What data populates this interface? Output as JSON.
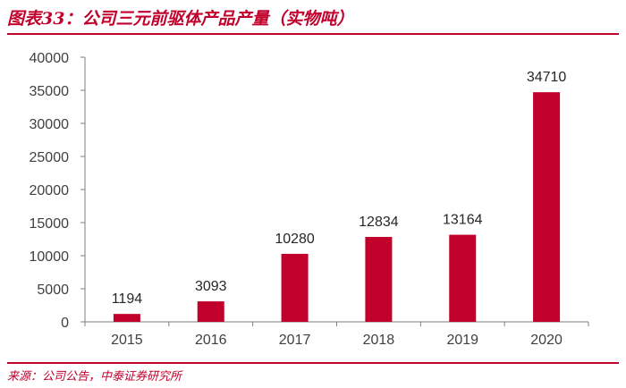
{
  "header": {
    "title": "图表33：公司三元前驱体产品产量（实物吨）"
  },
  "footer": {
    "source": "来源：公司公告，中泰证券研究所"
  },
  "colors": {
    "bar": "#c1002c",
    "accent": "#c1002c",
    "axis": "#7f7f7f",
    "text": "#404040"
  },
  "chart_data": {
    "type": "bar",
    "title": "",
    "xlabel": "",
    "ylabel": "",
    "categories": [
      "2015",
      "2016",
      "2017",
      "2018",
      "2019",
      "2020"
    ],
    "values": [
      1194,
      3093,
      10280,
      12834,
      13164,
      34710
    ],
    "data_labels": [
      "1194",
      "3093",
      "10280",
      "12834",
      "13164",
      "34710"
    ],
    "ylim": [
      0,
      40000
    ],
    "yticks": [
      "0",
      "5000",
      "10000",
      "15000",
      "20000",
      "25000",
      "30000",
      "35000",
      "40000"
    ],
    "grid": false,
    "legend": "none"
  }
}
